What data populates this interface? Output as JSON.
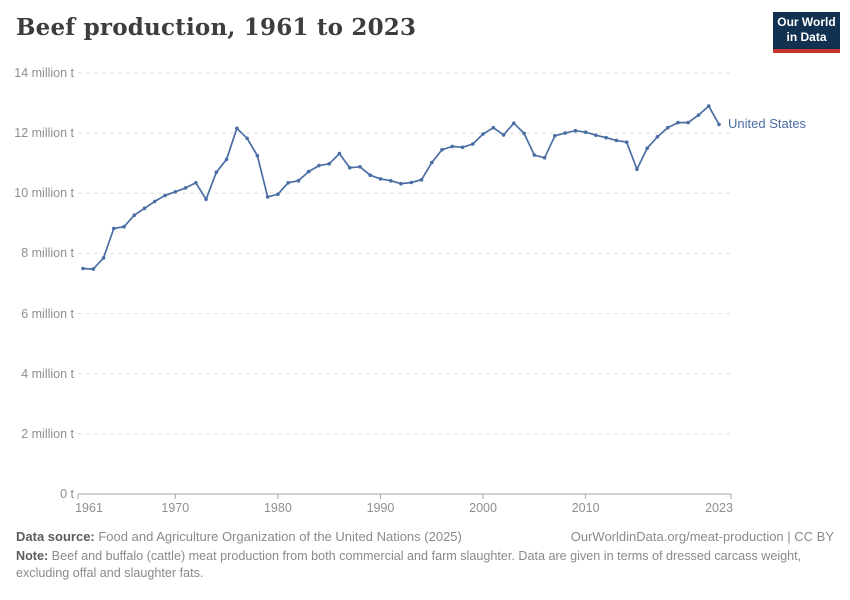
{
  "header": {
    "title": "Beef production, 1961 to 2023",
    "logo": {
      "line1": "Our World",
      "line2": "in Data"
    }
  },
  "chart_data": {
    "type": "line",
    "title": "Beef production, 1961 to 2023",
    "unit": "million t",
    "start_year": 1961,
    "end_year": 2023,
    "xlim": [
      1961,
      2023
    ],
    "ylim": [
      0,
      14
    ],
    "grid": "horizontal dashed",
    "legend_position": "end-of-line label",
    "x_ticks": [
      1961,
      1970,
      1980,
      1990,
      2000,
      2010,
      2023
    ],
    "y_ticks": [
      {
        "value": 0,
        "label": "0 t"
      },
      {
        "value": 2,
        "label": "2 million t"
      },
      {
        "value": 4,
        "label": "4 million t"
      },
      {
        "value": 6,
        "label": "6 million t"
      },
      {
        "value": 8,
        "label": "8 million t"
      },
      {
        "value": 10,
        "label": "10 million t"
      },
      {
        "value": 12,
        "label": "12 million t"
      },
      {
        "value": 14,
        "label": "14 million t"
      }
    ],
    "series": [
      {
        "name": "United States",
        "color": "#4a6da4",
        "values": [
          7.5,
          7.48,
          7.85,
          8.83,
          8.89,
          9.27,
          9.5,
          9.73,
          9.93,
          10.05,
          10.18,
          10.35,
          9.8,
          10.7,
          11.13,
          12.16,
          11.83,
          11.25,
          9.88,
          9.97,
          10.35,
          10.42,
          10.72,
          10.92,
          10.98,
          11.32,
          10.85,
          10.88,
          10.6,
          10.48,
          10.42,
          10.32,
          10.36,
          10.45,
          11.02,
          11.45,
          11.56,
          11.53,
          11.64,
          11.97,
          12.18,
          11.94,
          12.33,
          11.99,
          11.27,
          11.18,
          11.91,
          12.0,
          12.08,
          12.03,
          11.93,
          11.85,
          11.76,
          11.7,
          10.8,
          11.5,
          11.88,
          12.18,
          12.35,
          12.35,
          12.6,
          12.9,
          12.29
        ]
      }
    ]
  },
  "colors": {
    "line": "#4a6da4",
    "grid": "#dedede",
    "axis": "#a5a5a5",
    "tick_text": "#8f8f8f",
    "logo_bg": "#12304f",
    "logo_red": "#c4342c"
  },
  "footer": {
    "source_label": "Data source:",
    "source_text": " Food and Agriculture Organization of the United Nations (2025)",
    "link_text": "OurWorldinData.org/meat-production | CC BY",
    "note_label": "Note:",
    "note_text": " Beef and buffalo (cattle) meat production from both commercial and farm slaughter. Data are given in terms of dressed carcass weight, excluding offal and slaughter fats."
  }
}
